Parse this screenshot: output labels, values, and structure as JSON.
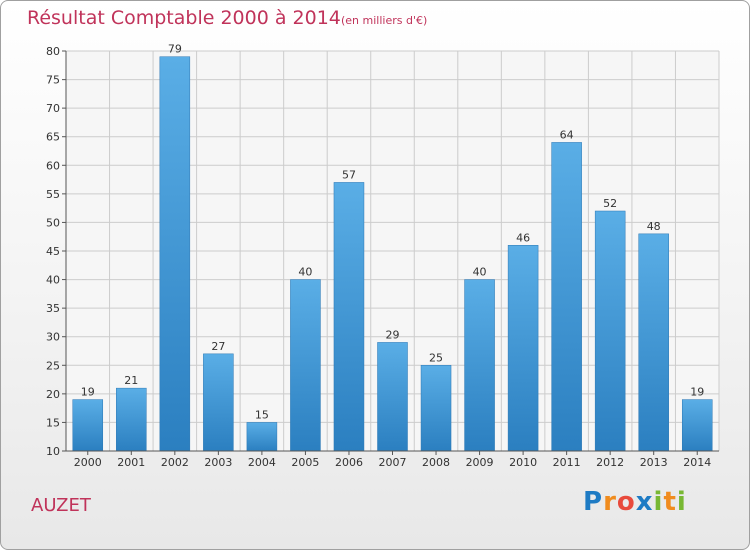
{
  "chart_data": {
    "type": "bar",
    "title": "Résultat Comptable 2000 à 2014",
    "subtitle": "(en milliers d'€)",
    "categories": [
      "2000",
      "2001",
      "2002",
      "2003",
      "2004",
      "2005",
      "2006",
      "2007",
      "2008",
      "2009",
      "2010",
      "2011",
      "2012",
      "2013",
      "2014"
    ],
    "values": [
      19,
      21,
      79,
      27,
      15,
      40,
      57,
      29,
      25,
      40,
      46,
      64,
      52,
      48,
      19
    ],
    "ylim": [
      10,
      80
    ],
    "yticks": [
      10,
      15,
      20,
      25,
      30,
      35,
      40,
      45,
      50,
      55,
      60,
      65,
      70,
      75,
      80
    ],
    "xlabel": "",
    "ylabel": "",
    "grid": true,
    "colors": {
      "bar_light": "#5aaee6",
      "bar_dark": "#2b7fc0",
      "grid": "#cccccc",
      "title": "#c0335a"
    }
  },
  "footer": {
    "place": "AUZET"
  },
  "logo": {
    "letters": [
      {
        "ch": "P",
        "color": "#1e7bc4"
      },
      {
        "ch": "r",
        "color": "#f08c1e"
      },
      {
        "ch": "o",
        "color": "#e84a3c"
      },
      {
        "ch": "x",
        "color": "#1e7bc4"
      },
      {
        "ch": "i",
        "color": "#78b833"
      },
      {
        "ch": "t",
        "color": "#f08c1e"
      },
      {
        "ch": "i",
        "color": "#78b833"
      }
    ]
  }
}
